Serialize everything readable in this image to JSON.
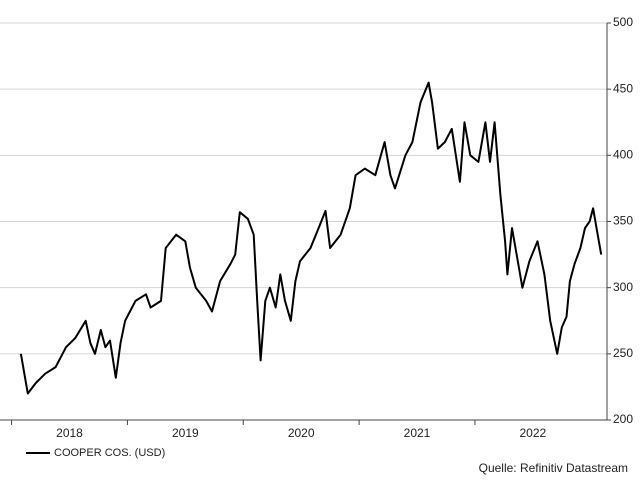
{
  "chart_data": {
    "type": "line",
    "series": [
      {
        "name": "COOPER COS. (USD)",
        "color": "#000000",
        "x": [
          2018.08,
          2018.14,
          2018.21,
          2018.29,
          2018.38,
          2018.47,
          2018.55,
          2018.64,
          2018.68,
          2018.72,
          2018.77,
          2018.81,
          2018.85,
          2018.9,
          2018.94,
          2018.98,
          2019.07,
          2019.16,
          2019.2,
          2019.29,
          2019.33,
          2019.42,
          2019.5,
          2019.54,
          2019.59,
          2019.68,
          2019.73,
          2019.8,
          2019.89,
          2019.93,
          2019.97,
          2020.04,
          2020.09,
          2020.12,
          2020.15,
          2020.19,
          2020.23,
          2020.28,
          2020.32,
          2020.36,
          2020.41,
          2020.45,
          2020.49,
          2020.58,
          2020.65,
          2020.71,
          2020.75,
          2020.84,
          2020.92,
          2020.97,
          2021.05,
          2021.14,
          2021.22,
          2021.27,
          2021.31,
          2021.4,
          2021.46,
          2021.53,
          2021.6,
          2021.63,
          2021.68,
          2021.74,
          2021.8,
          2021.87,
          2021.91,
          2021.96,
          2022.03,
          2022.09,
          2022.13,
          2022.17,
          2022.22,
          2022.26,
          2022.28,
          2022.32,
          2022.37,
          2022.41,
          2022.47,
          2022.54,
          2022.6,
          2022.65,
          2022.71,
          2022.75,
          2022.79,
          2022.82,
          2022.86,
          2022.91,
          2022.95,
          2022.99,
          2023.02,
          2023.06,
          2023.09
        ],
        "values": [
          250,
          220,
          228,
          235,
          240,
          255,
          262,
          275,
          258,
          250,
          268,
          255,
          260,
          232,
          258,
          275,
          290,
          295,
          285,
          290,
          330,
          340,
          335,
          315,
          300,
          290,
          282,
          305,
          318,
          325,
          357,
          352,
          340,
          290,
          245,
          290,
          300,
          285,
          310,
          290,
          275,
          305,
          320,
          330,
          345,
          358,
          330,
          340,
          360,
          385,
          390,
          385,
          410,
          385,
          375,
          400,
          410,
          440,
          455,
          440,
          405,
          410,
          420,
          380,
          425,
          400,
          395,
          425,
          395,
          425,
          370,
          335,
          310,
          345,
          320,
          300,
          320,
          335,
          310,
          275,
          250,
          270,
          278,
          305,
          318,
          330,
          345,
          350,
          360,
          340,
          325
        ]
      }
    ],
    "xlim": [
      2017.9,
      2023.14
    ],
    "xticks": [
      2018,
      2019,
      2020,
      2021,
      2022
    ],
    "ylim": [
      200,
      500
    ],
    "yticks": [
      200,
      250,
      300,
      350,
      400,
      450,
      500
    ],
    "grid": true,
    "source": "Quelle: Refinitiv Datastream"
  }
}
